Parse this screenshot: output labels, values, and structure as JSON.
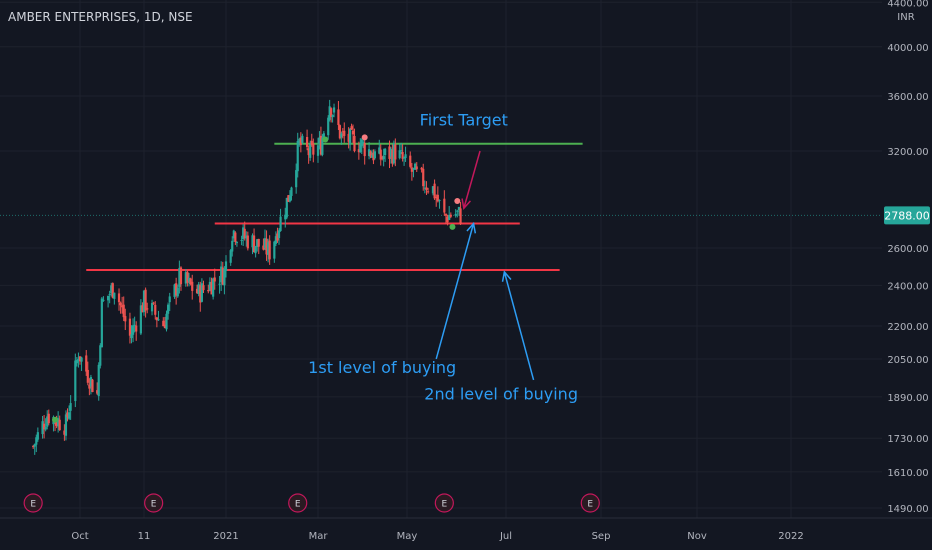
{
  "header": {
    "ticker": "AMBER ENTERPRISES, 1D, NSE"
  },
  "price_axis": {
    "currency": "INR"
  },
  "colors": {
    "background": "#131722",
    "up": "#26a69a",
    "down": "#ef5350",
    "resistance_line": "#4caf50",
    "support_line": "#f23645",
    "annotation": "#2d9df4",
    "target_arrow": "#c2185b",
    "price_tag": "#26a69a"
  },
  "chart_data": {
    "type": "candlestick",
    "symbol": "AMBER ENTERPRISES",
    "interval": "1D",
    "exchange": "NSE",
    "y_axis": {
      "unit": "INR",
      "ticks": [
        1490,
        1610,
        1730,
        1890,
        2050,
        2200,
        2400,
        2600,
        2788,
        3200,
        3600,
        4000,
        4400
      ],
      "tick_labels": [
        "1490.00",
        "1610.00",
        "1730.00",
        "1890.00",
        "2050.00",
        "2200.00",
        "2400.00",
        "2600.00",
        "2788.00",
        "3200.00",
        "3600.00",
        "4000.00",
        "4400.00"
      ],
      "scale": "log"
    },
    "x_axis": {
      "tick_labels": [
        "Oct",
        "11",
        "2021",
        "Mar",
        "May",
        "Jul",
        "Sep",
        "Nov",
        "2022"
      ],
      "tick_dates": [
        "2020-10-01",
        "2020-11-11",
        "2021-01-01",
        "2021-03-01",
        "2021-05-01",
        "2021-07-01",
        "2021-09-01",
        "2021-11-01",
        "2022-01-01"
      ]
    },
    "last_price": 2788.0,
    "price_path": [
      {
        "date": "2020-09-01",
        "close": 1700
      },
      {
        "date": "2020-09-10",
        "close": 1820
      },
      {
        "date": "2020-09-22",
        "close": 1780
      },
      {
        "date": "2020-09-30",
        "close": 2080
      },
      {
        "date": "2020-10-05",
        "close": 2000
      },
      {
        "date": "2020-10-12",
        "close": 1900
      },
      {
        "date": "2020-10-15",
        "close": 2300
      },
      {
        "date": "2020-10-23",
        "close": 2400
      },
      {
        "date": "2020-11-02",
        "close": 2150
      },
      {
        "date": "2020-11-11",
        "close": 2320
      },
      {
        "date": "2020-11-23",
        "close": 2210
      },
      {
        "date": "2020-12-03",
        "close": 2440
      },
      {
        "date": "2020-12-15",
        "close": 2360
      },
      {
        "date": "2020-12-31",
        "close": 2470
      },
      {
        "date": "2021-01-05",
        "close": 2700
      },
      {
        "date": "2021-01-15",
        "close": 2650
      },
      {
        "date": "2021-01-29",
        "close": 2580
      },
      {
        "date": "2021-02-10",
        "close": 2900
      },
      {
        "date": "2021-02-17",
        "close": 3250
      },
      {
        "date": "2021-02-24",
        "close": 3180
      },
      {
        "date": "2021-03-03",
        "close": 3250
      },
      {
        "date": "2021-03-09",
        "close": 3550
      },
      {
        "date": "2021-03-17",
        "close": 3300
      },
      {
        "date": "2021-03-30",
        "close": 3250
      },
      {
        "date": "2021-04-12",
        "close": 3150
      },
      {
        "date": "2021-04-23",
        "close": 3200
      },
      {
        "date": "2021-05-05",
        "close": 3050
      },
      {
        "date": "2021-05-17",
        "close": 2950
      },
      {
        "date": "2021-05-24",
        "close": 2780
      },
      {
        "date": "2021-05-31",
        "close": 2800
      },
      {
        "date": "2021-06-03",
        "close": 2788
      }
    ],
    "horizontal_lines": [
      {
        "price": 3250,
        "from": "2021-02-01",
        "to": "2021-08-20",
        "color": "#4caf50"
      },
      {
        "price": 2740,
        "from": "2020-12-25",
        "to": "2021-07-10",
        "color": "#f23645"
      },
      {
        "price": 2480,
        "from": "2020-10-05",
        "to": "2021-08-05",
        "color": "#f23645"
      }
    ],
    "annotations": [
      {
        "text": "First Target",
        "date": "2021-06-05",
        "price": 3380
      },
      {
        "text": "1st level of buying",
        "date": "2021-04-14",
        "price": 1990
      },
      {
        "text": "2nd level of buying",
        "date": "2021-06-28",
        "price": 1880
      }
    ],
    "signal_markers": [
      {
        "date": "2020-09-15",
        "price": 1800,
        "type": "buy"
      },
      {
        "date": "2021-03-06",
        "price": 3280,
        "type": "buy"
      },
      {
        "date": "2021-04-02",
        "price": 3295,
        "type": "sell"
      },
      {
        "date": "2021-05-29",
        "price": 2720,
        "type": "buy"
      },
      {
        "date": "2021-06-01",
        "price": 2875,
        "type": "sell"
      }
    ],
    "earnings_events": [
      {
        "date": "2020-09-01",
        "label": "E"
      },
      {
        "date": "2020-11-17",
        "label": "E"
      },
      {
        "date": "2021-02-16",
        "label": "E"
      },
      {
        "date": "2021-05-24",
        "label": "E"
      },
      {
        "date": "2021-08-25",
        "label": "E"
      }
    ],
    "grid": true,
    "legend": "none"
  }
}
